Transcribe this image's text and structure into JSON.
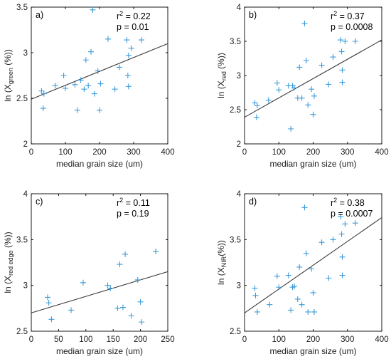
{
  "figure_title": "",
  "chart_data": [
    {
      "type": "scatter",
      "panel_label": "a)",
      "xlabel": "median grain size (um)",
      "ylabel_prefix": "ln (X",
      "ylabel_sub": "green",
      "ylabel_suffix": " (%))",
      "xlim": [
        0,
        400
      ],
      "ylim": [
        2,
        3.5
      ],
      "xticks": [
        0,
        100,
        200,
        300,
        400
      ],
      "yticks": [
        2,
        2.5,
        3,
        3.5
      ],
      "ytick_labels": [
        "2",
        "2.5",
        "3",
        "3.5"
      ],
      "stats": {
        "r2_prefix": "r",
        "r2_sup": "2",
        "r2_value": " = 0.22",
        "p": "p = 0.01"
      },
      "fit": {
        "x": [
          0,
          400
        ],
        "y": [
          2.49,
          3.1
        ]
      },
      "points": {
        "x": [
          30,
          35,
          37,
          70,
          95,
          100,
          128,
          135,
          145,
          155,
          160,
          167,
          175,
          180,
          185,
          195,
          200,
          203,
          225,
          245,
          258,
          280,
          283,
          285,
          285,
          293,
          323
        ],
        "y": [
          2.58,
          2.39,
          2.55,
          2.64,
          2.75,
          2.61,
          2.65,
          2.37,
          2.7,
          2.6,
          2.92,
          2.64,
          3.01,
          3.47,
          2.55,
          2.8,
          2.37,
          2.66,
          3.15,
          2.6,
          2.84,
          3.14,
          2.75,
          2.63,
          2.97,
          3.05,
          3.14
        ]
      }
    },
    {
      "type": "scatter",
      "panel_label": "b)",
      "xlabel": "median grain size (um)",
      "ylabel_prefix": "ln (X",
      "ylabel_sub": "red",
      "ylabel_suffix": " (%))",
      "xlim": [
        0,
        400
      ],
      "ylim": [
        2,
        4
      ],
      "xticks": [
        0,
        100,
        200,
        300,
        400
      ],
      "yticks": [
        2,
        2.5,
        3,
        3.5,
        4
      ],
      "ytick_labels": [
        "2",
        "2.5",
        "3",
        "3.5",
        "4"
      ],
      "stats": {
        "r2_prefix": "r",
        "r2_sup": "2",
        "r2_value": " = 0.37",
        "p": "p = 0.0008"
      },
      "fit": {
        "x": [
          0,
          400
        ],
        "y": [
          2.39,
          3.52
        ]
      },
      "points": {
        "x": [
          30,
          35,
          37,
          70,
          95,
          100,
          128,
          135,
          140,
          145,
          155,
          160,
          167,
          175,
          180,
          185,
          195,
          200,
          203,
          225,
          245,
          258,
          280,
          283,
          285,
          285,
          293,
          323
        ],
        "y": [
          2.6,
          2.39,
          2.56,
          2.64,
          2.89,
          2.79,
          2.85,
          2.22,
          2.85,
          2.82,
          2.67,
          3.12,
          2.67,
          3.76,
          3.22,
          2.57,
          2.8,
          2.43,
          2.7,
          3.15,
          2.87,
          3.27,
          3.52,
          3.35,
          3.08,
          2.9,
          3.5,
          3.5
        ]
      }
    },
    {
      "type": "scatter",
      "panel_label": "c)",
      "xlabel": "median grain size (um)",
      "ylabel_prefix": "ln (X",
      "ylabel_sub": "red edge",
      "ylabel_suffix": " (%))",
      "xlim": [
        0,
        250
      ],
      "ylim": [
        2.5,
        4
      ],
      "xticks": [
        0,
        50,
        100,
        150,
        200,
        250
      ],
      "yticks": [
        2.5,
        3,
        3.5,
        4
      ],
      "ytick_labels": [
        "2.5",
        "3",
        "3.5",
        "4"
      ],
      "stats": {
        "r2_prefix": "r",
        "r2_sup": "2",
        "r2_value": " = 0.11",
        "p": "p = 0.19"
      },
      "fit": {
        "x": [
          0,
          250
        ],
        "y": [
          2.7,
          3.15
        ]
      },
      "points": {
        "x": [
          30,
          32,
          37,
          73,
          95,
          140,
          145,
          158,
          162,
          168,
          172,
          183,
          195,
          200,
          202,
          228
        ],
        "y": [
          2.87,
          2.81,
          2.63,
          2.73,
          3.03,
          3.0,
          2.97,
          2.75,
          3.23,
          2.76,
          3.34,
          2.67,
          3.06,
          2.82,
          2.6,
          3.37
        ]
      }
    },
    {
      "type": "scatter",
      "panel_label": "d)",
      "xlabel": "median grain size (um)",
      "ylabel_prefix": "ln (X",
      "ylabel_sub": "NIR",
      "ylabel_suffix": "(%))",
      "xlim": [
        0,
        400
      ],
      "ylim": [
        2.5,
        4
      ],
      "xticks": [
        0,
        100,
        200,
        300,
        400
      ],
      "yticks": [
        2.5,
        3,
        3.5,
        4
      ],
      "ytick_labels": [
        "2.5",
        "3",
        "3.5",
        "4"
      ],
      "stats": {
        "r2_prefix": "r",
        "r2_sup": "2",
        "r2_value": " = 0.38",
        "p": "p = 0.0007"
      },
      "fit": {
        "x": [
          0,
          400
        ],
        "y": [
          2.7,
          3.74
        ]
      },
      "points": {
        "x": [
          30,
          32,
          37,
          73,
          95,
          100,
          128,
          135,
          140,
          145,
          155,
          160,
          167,
          175,
          180,
          185,
          195,
          200,
          203,
          225,
          245,
          258,
          280,
          283,
          285,
          285,
          293,
          323
        ],
        "y": [
          2.97,
          2.89,
          2.71,
          2.79,
          3.1,
          2.98,
          3.11,
          2.73,
          2.98,
          2.99,
          2.85,
          3.2,
          2.79,
          3.85,
          3.35,
          2.71,
          3.18,
          2.92,
          2.71,
          3.47,
          3.08,
          3.5,
          3.75,
          3.56,
          3.11,
          3.31,
          3.67,
          3.68
        ]
      }
    }
  ]
}
